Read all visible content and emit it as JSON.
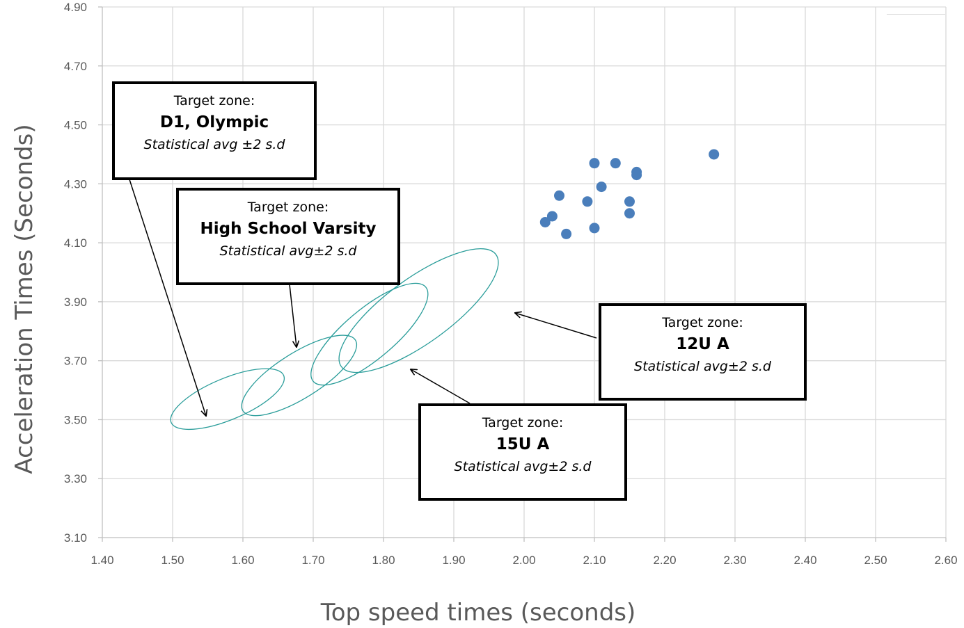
{
  "chart_data": {
    "type": "scatter",
    "xlabel": "Top speed times (seconds)",
    "ylabel": "Acceleration Times (Seconds)",
    "xlim": [
      1.4,
      2.6
    ],
    "ylim": [
      3.1,
      4.9
    ],
    "xticks": [
      "1.40",
      "1.50",
      "1.60",
      "1.70",
      "1.80",
      "1.90",
      "2.00",
      "2.10",
      "2.20",
      "2.30",
      "2.40",
      "2.50",
      "2.60"
    ],
    "yticks": [
      "3.10",
      "3.30",
      "3.50",
      "3.70",
      "3.90",
      "4.10",
      "4.30",
      "4.50",
      "4.70",
      "4.90"
    ],
    "grid": true,
    "point_color": "#4a7ebb",
    "zone_color": "#2a9d9a",
    "points": [
      {
        "x": 2.03,
        "y": 4.17
      },
      {
        "x": 2.04,
        "y": 4.19
      },
      {
        "x": 2.05,
        "y": 4.26
      },
      {
        "x": 2.06,
        "y": 4.13
      },
      {
        "x": 2.09,
        "y": 4.24
      },
      {
        "x": 2.1,
        "y": 4.37
      },
      {
        "x": 2.1,
        "y": 4.15
      },
      {
        "x": 2.11,
        "y": 4.29
      },
      {
        "x": 2.13,
        "y": 4.37
      },
      {
        "x": 2.15,
        "y": 4.24
      },
      {
        "x": 2.15,
        "y": 4.2
      },
      {
        "x": 2.16,
        "y": 4.34
      },
      {
        "x": 2.16,
        "y": 4.33
      },
      {
        "x": 2.27,
        "y": 4.4
      }
    ],
    "zones": [
      {
        "key": "d1",
        "cx": 1.578,
        "cy": 3.57,
        "x_from": 1.5,
        "x_to": 1.66,
        "y_from": 3.49,
        "y_to": 3.65
      },
      {
        "key": "hs",
        "cx": 1.68,
        "cy": 3.65,
        "x_from": 1.6,
        "x_to": 1.76,
        "y_from": 3.53,
        "y_to": 3.77
      },
      {
        "key": "u15",
        "cx": 1.78,
        "cy": 3.79,
        "x_from": 1.7,
        "x_to": 1.86,
        "y_from": 3.63,
        "y_to": 3.95
      },
      {
        "key": "u12",
        "cx": 1.85,
        "cy": 3.87,
        "x_from": 1.76,
        "x_to": 1.98,
        "y_from": 3.69,
        "y_to": 4.07
      }
    ]
  },
  "callouts": {
    "d1": {
      "line1": "Target zone:",
      "line2": "D1, Olympic",
      "line3": "Statistical avg ±2 s.d"
    },
    "hs": {
      "line1": "Target zone:",
      "line2": "High School Varsity",
      "line3": "Statistical avg±2 s.d"
    },
    "u12": {
      "line1": "Target zone:",
      "line2": "12U A",
      "line3": "Statistical avg±2 s.d"
    },
    "u15": {
      "line1": "Target zone:",
      "line2": "15U A",
      "line3": "Statistical avg±2 s.d"
    }
  }
}
